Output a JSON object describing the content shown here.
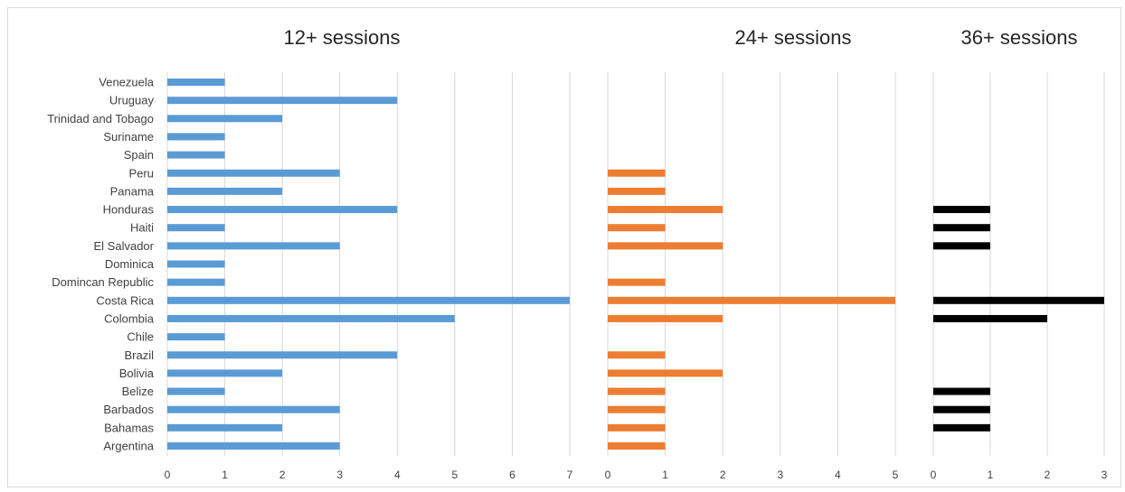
{
  "chart_data": [
    {
      "type": "bar",
      "orientation": "horizontal",
      "title": "12+ sessions",
      "color": "#5B9BD5",
      "xlim": [
        0,
        7
      ],
      "ticks": [
        0,
        1,
        2,
        3,
        4,
        5,
        6,
        7
      ],
      "grid": true,
      "categories": [
        "Venezuela",
        "Uruguay",
        "Trinidad and Tobago",
        "Suriname",
        "Spain",
        "Peru",
        "Panama",
        "Honduras",
        "Haiti",
        "El Salvador",
        "Dominica",
        "Domincan Republic",
        "Costa Rica",
        "Colombia",
        "Chile",
        "Brazil",
        "Bolivia",
        "Belize",
        "Barbados",
        "Bahamas",
        "Argentina"
      ],
      "values": [
        1,
        4,
        2,
        1,
        1,
        3,
        2,
        4,
        1,
        3,
        1,
        1,
        7,
        5,
        1,
        4,
        2,
        1,
        3,
        2,
        3
      ]
    },
    {
      "type": "bar",
      "orientation": "horizontal",
      "title": "24+ sessions",
      "color": "#ED7D31",
      "xlim": [
        0,
        5
      ],
      "ticks": [
        0,
        1,
        2,
        3,
        4,
        5
      ],
      "grid": true,
      "categories": [
        "Venezuela",
        "Uruguay",
        "Trinidad and Tobago",
        "Suriname",
        "Spain",
        "Peru",
        "Panama",
        "Honduras",
        "Haiti",
        "El Salvador",
        "Dominica",
        "Domincan Republic",
        "Costa Rica",
        "Colombia",
        "Chile",
        "Brazil",
        "Bolivia",
        "Belize",
        "Barbados",
        "Bahamas",
        "Argentina"
      ],
      "values": [
        0,
        0,
        0,
        0,
        0,
        1,
        1,
        2,
        1,
        2,
        0,
        1,
        5,
        2,
        0,
        1,
        2,
        1,
        1,
        1,
        1
      ]
    },
    {
      "type": "bar",
      "orientation": "horizontal",
      "title": "36+ sessions",
      "color": "#000000",
      "xlim": [
        0,
        3
      ],
      "ticks": [
        0,
        1,
        2,
        3
      ],
      "grid": true,
      "categories": [
        "Venezuela",
        "Uruguay",
        "Trinidad and Tobago",
        "Suriname",
        "Spain",
        "Peru",
        "Panama",
        "Honduras",
        "Haiti",
        "El Salvador",
        "Dominica",
        "Domincan Republic",
        "Costa Rica",
        "Colombia",
        "Chile",
        "Brazil",
        "Bolivia",
        "Belize",
        "Barbados",
        "Bahamas",
        "Argentina"
      ],
      "values": [
        0,
        0,
        0,
        0,
        0,
        0,
        0,
        1,
        1,
        1,
        0,
        0,
        3,
        2,
        0,
        0,
        0,
        1,
        1,
        1,
        0
      ]
    }
  ]
}
